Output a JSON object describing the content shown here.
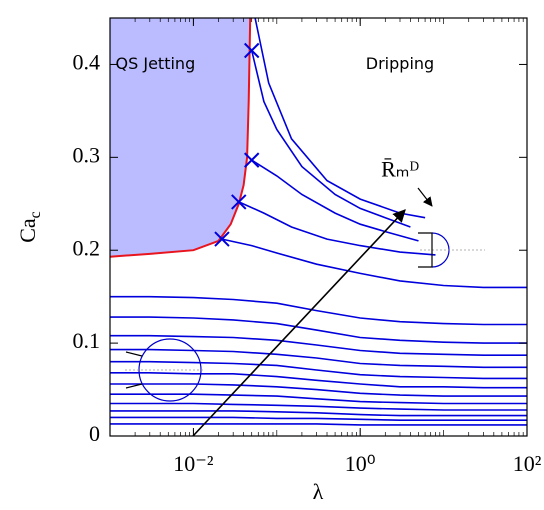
{
  "chart_data": {
    "type": "line",
    "xlabel": "λ",
    "ylabel": "Ca",
    "ylabel_sub": "c",
    "xlog": true,
    "xlim": [
      0.001,
      100
    ],
    "ylim": [
      0,
      0.45
    ],
    "xticks": [
      {
        "value": 0.01,
        "label": "10⁻²"
      },
      {
        "value": 1,
        "label": "10⁰"
      },
      {
        "value": 100,
        "label": "10²"
      }
    ],
    "yticks": [
      0,
      0.1,
      0.2,
      0.3,
      0.4
    ],
    "annotations": [
      {
        "text": "QS Jetting",
        "x": 0.0035,
        "y": 0.4
      },
      {
        "text": "Dripping",
        "x": 3,
        "y": 0.4
      },
      {
        "text": "R̄ₘᴰ",
        "x": 3,
        "y": 0.285
      }
    ],
    "series": [
      {
        "color": "#e8141e",
        "fill": "#bbbbff",
        "x": [
          0.001,
          0.003,
          0.01,
          0.02,
          0.028,
          0.035,
          0.04,
          0.044,
          0.046,
          0.048
        ],
        "values": [
          0.193,
          0.196,
          0.2,
          0.21,
          0.228,
          0.25,
          0.27,
          0.3,
          0.36,
          0.45
        ]
      },
      {
        "color": "#0000dd",
        "x": [
          0.055,
          0.08,
          0.15,
          0.4,
          1,
          3,
          6
        ],
        "values": [
          0.45,
          0.38,
          0.32,
          0.275,
          0.255,
          0.24,
          0.235
        ]
      },
      {
        "color": "#0000dd",
        "x": [
          0.05,
          0.07,
          0.1,
          0.2,
          0.5,
          1,
          2,
          4
        ],
        "values": [
          0.415,
          0.36,
          0.33,
          0.29,
          0.26,
          0.245,
          0.235,
          0.225
        ]
      },
      {
        "color": "#0000dd",
        "x": [
          0.05,
          0.1,
          0.2,
          0.5,
          1,
          2,
          5
        ],
        "values": [
          0.297,
          0.28,
          0.26,
          0.24,
          0.228,
          0.22,
          0.21
        ]
      },
      {
        "color": "#0000dd",
        "x": [
          0.035,
          0.07,
          0.15,
          0.4,
          1,
          3,
          8
        ],
        "values": [
          0.252,
          0.24,
          0.225,
          0.212,
          0.205,
          0.198,
          0.195
        ]
      },
      {
        "color": "#0000dd",
        "x": [
          0.022,
          0.05,
          0.1,
          0.3,
          1,
          3,
          10,
          30,
          100
        ],
        "values": [
          0.212,
          0.205,
          0.197,
          0.185,
          0.175,
          0.167,
          0.162,
          0.16,
          0.16
        ]
      },
      {
        "color": "#0000dd",
        "x": [
          0.001,
          0.003,
          0.01,
          0.03,
          0.1,
          0.3,
          1,
          3,
          10,
          30,
          100
        ],
        "values": [
          0.15,
          0.15,
          0.149,
          0.147,
          0.143,
          0.135,
          0.127,
          0.123,
          0.121,
          0.12,
          0.12
        ]
      },
      {
        "color": "#0000dd",
        "x": [
          0.001,
          0.003,
          0.01,
          0.03,
          0.1,
          0.3,
          1,
          3,
          10,
          30,
          100
        ],
        "values": [
          0.128,
          0.128,
          0.127,
          0.125,
          0.121,
          0.114,
          0.106,
          0.103,
          0.101,
          0.1,
          0.1
        ]
      },
      {
        "color": "#0000dd",
        "x": [
          0.001,
          0.003,
          0.01,
          0.03,
          0.1,
          0.3,
          1,
          3,
          10,
          30,
          100
        ],
        "values": [
          0.108,
          0.108,
          0.107,
          0.106,
          0.103,
          0.098,
          0.092,
          0.089,
          0.088,
          0.087,
          0.087
        ]
      },
      {
        "color": "#0000dd",
        "x": [
          0.001,
          0.003,
          0.01,
          0.03,
          0.1,
          0.3,
          1,
          3,
          10,
          30,
          100
        ],
        "values": [
          0.093,
          0.093,
          0.092,
          0.091,
          0.088,
          0.084,
          0.078,
          0.076,
          0.075,
          0.074,
          0.074
        ]
      },
      {
        "color": "#0000dd",
        "x": [
          0.001,
          0.003,
          0.01,
          0.03,
          0.1,
          0.3,
          1,
          3,
          10,
          30,
          100
        ],
        "values": [
          0.08,
          0.08,
          0.079,
          0.078,
          0.076,
          0.071,
          0.066,
          0.064,
          0.063,
          0.062,
          0.062
        ]
      },
      {
        "color": "#0000dd",
        "x": [
          0.001,
          0.003,
          0.01,
          0.03,
          0.1,
          0.3,
          1,
          3,
          10,
          30,
          100
        ],
        "values": [
          0.068,
          0.068,
          0.067,
          0.067,
          0.064,
          0.06,
          0.056,
          0.053,
          0.053,
          0.052,
          0.052
        ]
      },
      {
        "color": "#0000dd",
        "x": [
          0.001,
          0.003,
          0.01,
          0.03,
          0.1,
          0.3,
          1,
          3,
          10,
          30,
          100
        ],
        "values": [
          0.056,
          0.056,
          0.056,
          0.055,
          0.053,
          0.05,
          0.046,
          0.044,
          0.043,
          0.043,
          0.043
        ]
      },
      {
        "color": "#0000dd",
        "x": [
          0.001,
          0.003,
          0.01,
          0.03,
          0.1,
          0.3,
          1,
          3,
          10,
          30,
          100
        ],
        "values": [
          0.045,
          0.045,
          0.045,
          0.044,
          0.043,
          0.04,
          0.037,
          0.036,
          0.035,
          0.035,
          0.035
        ]
      },
      {
        "color": "#0000dd",
        "x": [
          0.001,
          0.003,
          0.01,
          0.03,
          0.1,
          0.3,
          1,
          3,
          10,
          30,
          100
        ],
        "values": [
          0.035,
          0.035,
          0.035,
          0.034,
          0.033,
          0.032,
          0.03,
          0.029,
          0.028,
          0.028,
          0.028
        ]
      },
      {
        "color": "#0000dd",
        "x": [
          0.001,
          0.003,
          0.01,
          0.03,
          0.1,
          0.3,
          1,
          3,
          10,
          30,
          100
        ],
        "values": [
          0.027,
          0.027,
          0.027,
          0.027,
          0.026,
          0.025,
          0.023,
          0.022,
          0.022,
          0.022,
          0.022
        ]
      },
      {
        "color": "#0000dd",
        "x": [
          0.001,
          0.003,
          0.01,
          0.03,
          0.1,
          0.3,
          1,
          3,
          10,
          30,
          100
        ],
        "values": [
          0.02,
          0.02,
          0.02,
          0.02,
          0.019,
          0.019,
          0.018,
          0.017,
          0.017,
          0.017,
          0.017
        ]
      },
      {
        "color": "#0000dd",
        "x": [
          0.001,
          0.003,
          0.01,
          0.03,
          0.1,
          0.3,
          1,
          3,
          10,
          30,
          100
        ],
        "values": [
          0.013,
          0.013,
          0.013,
          0.013,
          0.013,
          0.013,
          0.012,
          0.012,
          0.012,
          0.012,
          0.012
        ]
      },
      {
        "color": "#0000dd",
        "marker": "x",
        "x": [
          0.05,
          0.05,
          0.035,
          0.022
        ],
        "values": [
          0.415,
          0.297,
          0.252,
          0.212
        ]
      }
    ]
  }
}
